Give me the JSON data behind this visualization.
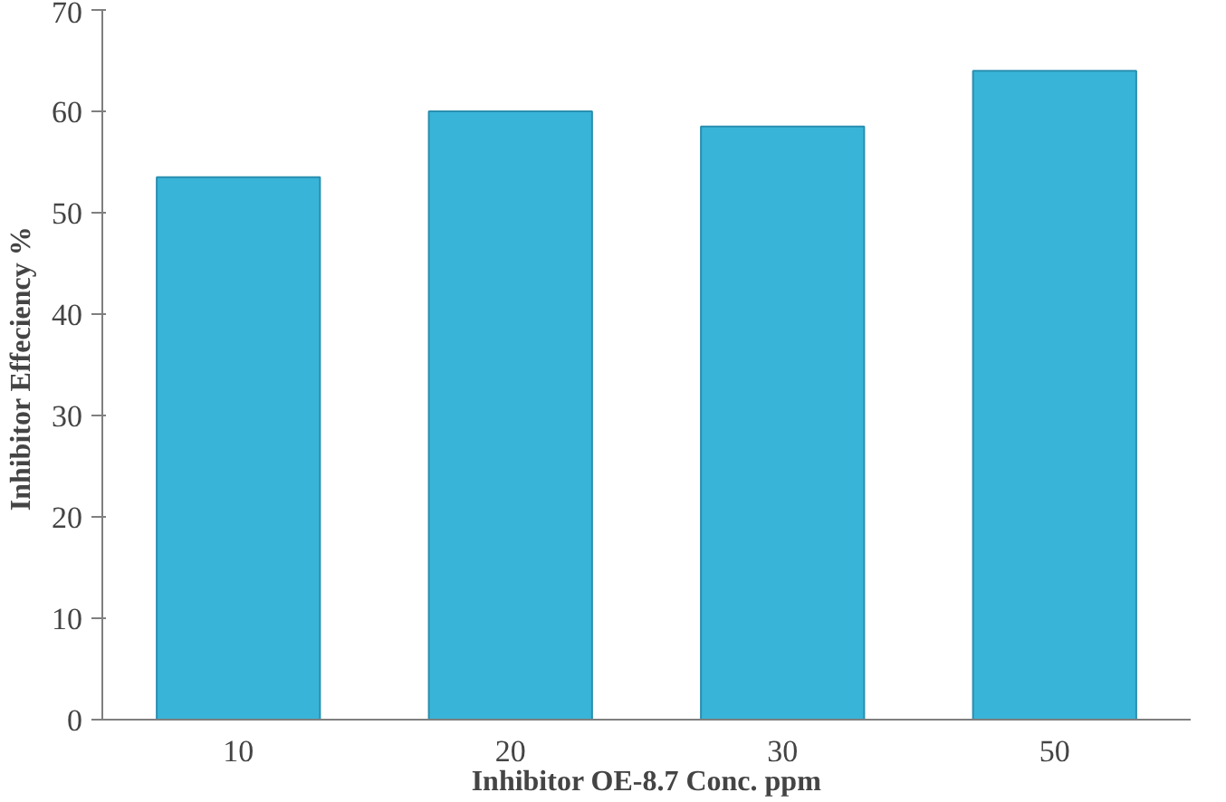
{
  "chart_data": {
    "type": "bar",
    "xlabel": "Inhibitor OE-8.7 Conc. ppm",
    "ylabel": "Inhibitor  Effeciency %",
    "categories": [
      "10",
      "20",
      "30",
      "50"
    ],
    "values": [
      53.5,
      60,
      58.5,
      64
    ],
    "color": "#38b4d8",
    "ylim": [
      0,
      70
    ],
    "yticks": [
      0,
      10,
      20,
      30,
      40,
      50,
      60,
      70
    ],
    "grid": false
  }
}
